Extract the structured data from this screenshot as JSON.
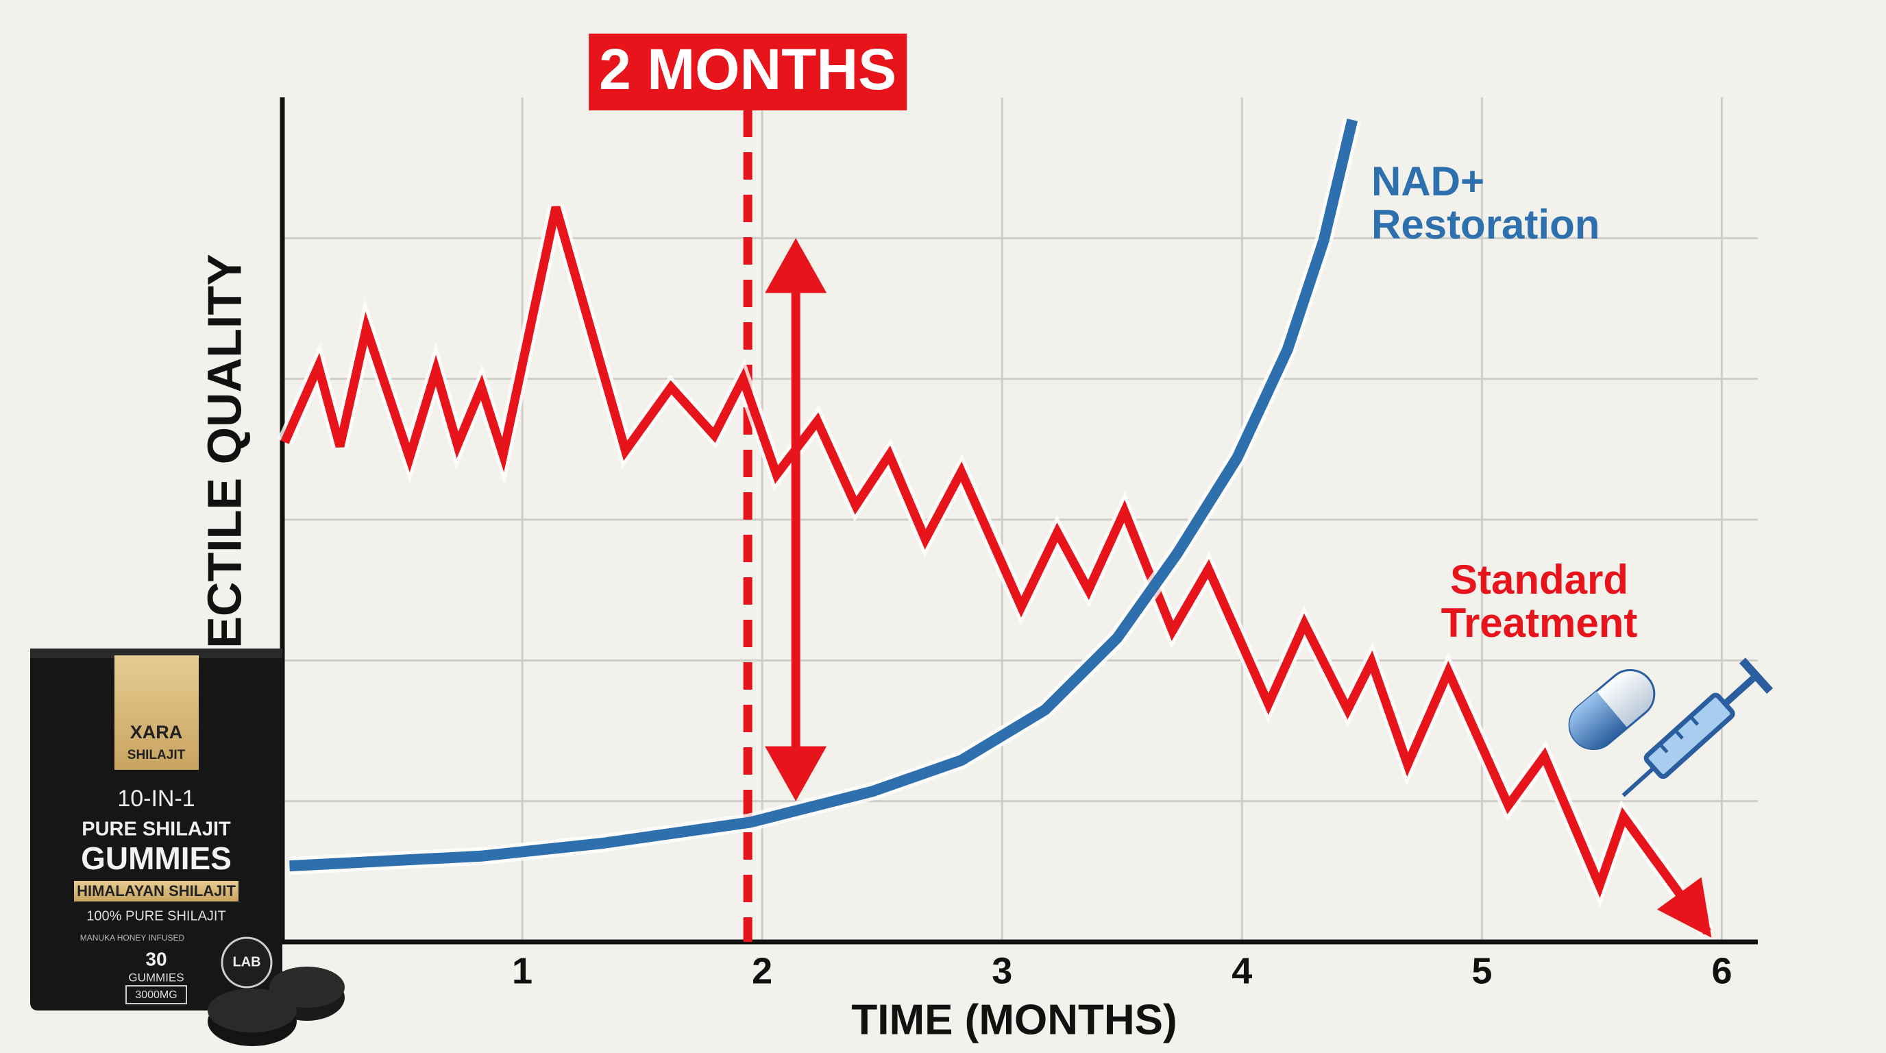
{
  "chart_data": {
    "type": "line",
    "ylabel": "ECTILE QUALITY",
    "xlabel": "TIME (MONTHS)",
    "xlim": [
      0,
      6.15
    ],
    "xticks": [
      1,
      2,
      3,
      4,
      5,
      6
    ],
    "ylim": [
      0,
      6
    ],
    "ygrid": [
      1,
      2,
      3,
      4,
      5
    ],
    "grid": true,
    "marker": {
      "label": "2 MONTHS",
      "x": 1.94,
      "color": "#e8141c"
    },
    "arrow": {
      "x": 2.14,
      "y_from": 1.0,
      "y_to": 5.0,
      "color": "#e8141c"
    },
    "series": [
      {
        "name": "Standard Treatment",
        "color": "#e8141c",
        "x": [
          0.01,
          0.15,
          0.24,
          0.35,
          0.53,
          0.64,
          0.73,
          0.83,
          0.92,
          1.14,
          1.43,
          1.62,
          1.8,
          1.92,
          2.06,
          2.23,
          2.39,
          2.53,
          2.68,
          2.83,
          3.08,
          3.23,
          3.36,
          3.51,
          3.71,
          3.86,
          4.11,
          4.26,
          4.44,
          4.54,
          4.69,
          4.86,
          5.11,
          5.26,
          5.49,
          5.59,
          5.94
        ],
        "values": [
          3.55,
          4.09,
          3.52,
          4.36,
          3.44,
          4.06,
          3.53,
          3.94,
          3.46,
          5.22,
          3.49,
          3.94,
          3.6,
          4.0,
          3.32,
          3.7,
          3.1,
          3.46,
          2.86,
          3.34,
          2.38,
          2.91,
          2.5,
          3.06,
          2.21,
          2.65,
          1.69,
          2.26,
          1.65,
          1.99,
          1.26,
          1.92,
          0.97,
          1.32,
          0.4,
          0.89,
          0.07
        ]
      },
      {
        "name": "NAD+ Restoration",
        "color": "#2e6fae",
        "x": [
          0.03,
          0.83,
          1.33,
          1.95,
          2.46,
          2.83,
          3.18,
          3.48,
          3.73,
          3.98,
          4.19,
          4.34,
          4.46
        ],
        "values": [
          0.54,
          0.61,
          0.7,
          0.85,
          1.07,
          1.29,
          1.65,
          2.16,
          2.76,
          3.44,
          4.21,
          4.98,
          5.84
        ]
      }
    ]
  },
  "product": {
    "brand": "XARA",
    "sub": "SHILAJIT",
    "line1": "10-IN-1",
    "line2": "PURE SHILAJIT",
    "name": "GUMMIES",
    "band": "HIMALAYAN SHILAJIT",
    "purity": "100% PURE SHILAJIT",
    "note": "MANUKA HONEY INFUSED",
    "count": 30,
    "count_label": "GUMMIES",
    "dose": "3000MG",
    "badge": "LAB"
  }
}
